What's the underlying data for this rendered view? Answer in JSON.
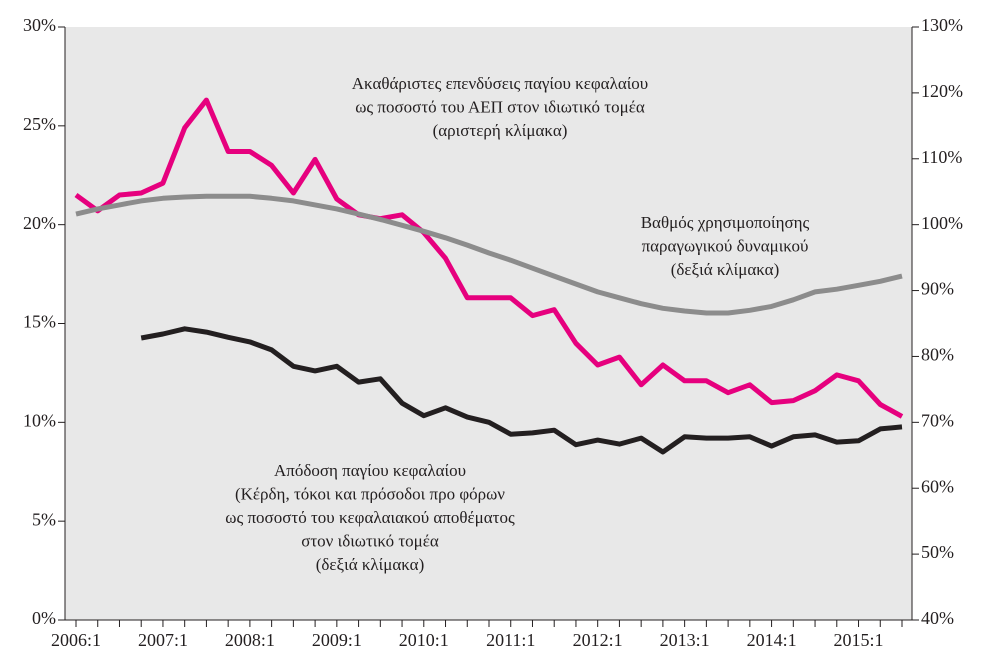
{
  "chart_data": {
    "type": "line",
    "categories": [
      "2006:1",
      null,
      null,
      null,
      "2007:1",
      null,
      null,
      null,
      "2008:1",
      null,
      null,
      null,
      "2009:1",
      null,
      null,
      null,
      "2010:1",
      null,
      null,
      null,
      "2011:1",
      null,
      null,
      null,
      "2012:1",
      null,
      null,
      null,
      "2013:1",
      null,
      null,
      null,
      "2014:1",
      null,
      null,
      null,
      "2015:1",
      null,
      null
    ],
    "series": [
      {
        "name": "Ακαθάριστες επενδύσεις παγίου κεφαλαίου ως ποσοστό του ΑΕΠ στον ιδιωτικό τομέα (αριστερή κλίμακα)",
        "color": "#e6007e",
        "axis": "y",
        "values": [
          21.5,
          20.7,
          21.5,
          21.6,
          22.1,
          24.9,
          26.3,
          23.7,
          23.7,
          23.0,
          21.6,
          23.3,
          21.3,
          20.5,
          20.3,
          20.5,
          19.6,
          18.3,
          16.3,
          16.3,
          16.3,
          15.4,
          15.7,
          14.0,
          12.9,
          13.3,
          11.9,
          12.9,
          12.1,
          12.1,
          11.5,
          11.9,
          11.0,
          11.1,
          11.6,
          12.4,
          12.1,
          10.9,
          10.3
        ]
      },
      {
        "name": "Βαθμός χρησιμοποίησης παραγωγικού δυναμικού (δεξιά κλίμακα)",
        "color": "#8c8c8c",
        "axis": "y2",
        "values": [
          101.6,
          102.4,
          103.0,
          103.6,
          104.0,
          104.2,
          104.3,
          104.3,
          104.3,
          104.0,
          103.6,
          103.0,
          102.4,
          101.6,
          100.8,
          99.9,
          99.0,
          98.0,
          96.9,
          95.7,
          94.6,
          93.4,
          92.2,
          91.0,
          89.8,
          88.9,
          88.0,
          87.3,
          86.9,
          86.6,
          86.6,
          87.0,
          87.6,
          88.6,
          89.8,
          90.2,
          90.8,
          91.4,
          92.2
        ]
      },
      {
        "name": "Απόδοση παγίου κεφαλαίου (Κέρδη, τόκοι και πρόσοδοι προ φόρων ως ποσοστό του κεφαλαιακού αποθέματος στον ιδιωτικό τομέα (δεξιά κλίμακα)",
        "color": "#231f20",
        "axis": "y2",
        "values": [
          null,
          null,
          null,
          82.8,
          83.4,
          84.2,
          83.7,
          82.9,
          82.2,
          81.0,
          78.5,
          77.8,
          78.5,
          76.1,
          76.6,
          72.9,
          71.0,
          72.2,
          70.8,
          70.0,
          68.2,
          68.4,
          68.8,
          66.6,
          67.3,
          66.7,
          67.6,
          65.5,
          67.8,
          67.6,
          67.6,
          67.8,
          66.4,
          67.8,
          68.1,
          67.0,
          67.2,
          69.0,
          69.3
        ]
      }
    ],
    "annotations": [
      {
        "lines": [
          "Ακαθάριστες επενδύσεις παγίου κεφαλαίου",
          "ως ποσοστό του ΑΕΠ στον ιδιωτικό τομέα",
          "(αριστερή κλίμακα)"
        ]
      },
      {
        "lines": [
          "Βαθμός χρησιμοποίησης",
          "παραγωγικού δυναμικού",
          "(δεξιά κλίμακα)"
        ]
      },
      {
        "lines": [
          "Απόδοση παγίου κεφαλαίου",
          "(Κέρδη, τόκοι και πρόσοδοι προ φόρων",
          "ως ποσοστό του κεφαλαιακού αποθέματος",
          "στον ιδιωτικό τομέα",
          "(δεξιά κλίμακα)"
        ]
      }
    ],
    "ylim": [
      0,
      30
    ],
    "yticks": [
      {
        "value": 0,
        "label": "0%"
      },
      {
        "value": 5,
        "label": "5%"
      },
      {
        "value": 10,
        "label": "10%"
      },
      {
        "value": 15,
        "label": "15%"
      },
      {
        "value": 20,
        "label": "20%"
      },
      {
        "value": 25,
        "label": "25%"
      },
      {
        "value": 30,
        "label": "30%"
      }
    ],
    "y2lim": [
      40,
      130
    ],
    "y2ticks": [
      {
        "value": 40,
        "label": "40%"
      },
      {
        "value": 50,
        "label": "50%"
      },
      {
        "value": 60,
        "label": "60%"
      },
      {
        "value": 70,
        "label": "70%"
      },
      {
        "value": 80,
        "label": "80%"
      },
      {
        "value": 90,
        "label": "90%"
      },
      {
        "value": 100,
        "label": "100%"
      },
      {
        "value": 110,
        "label": "110%"
      },
      {
        "value": 120,
        "label": "120%"
      },
      {
        "value": 130,
        "label": "130%"
      }
    ],
    "grid": false
  }
}
